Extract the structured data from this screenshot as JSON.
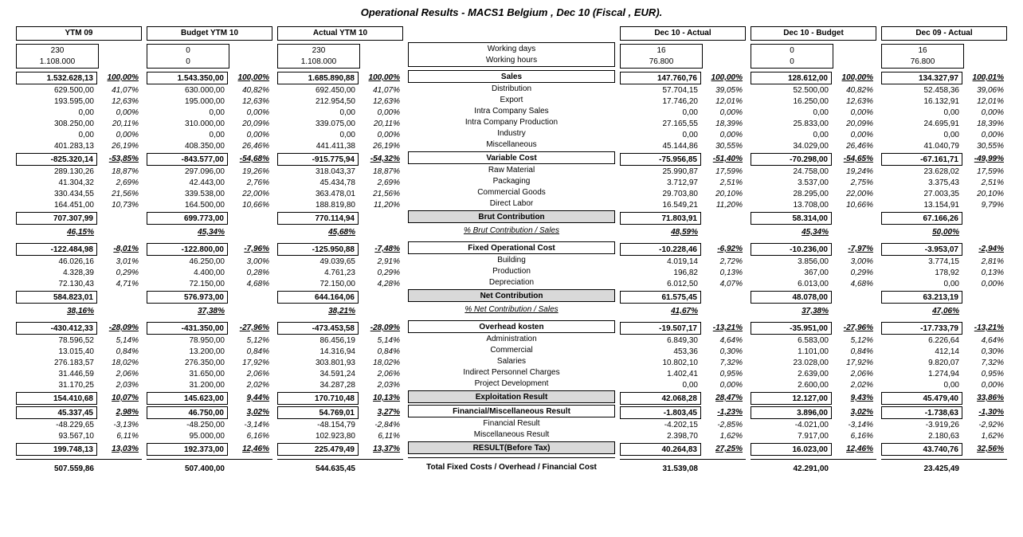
{
  "title": "Operational Results - MACS1  Belgium , Dec 10 (Fiscal , EUR).",
  "column_headers": [
    "YTM 09",
    "Budget YTM 10",
    "Actual YTM 10",
    "",
    "Dec 10 - Actual",
    "Dec 10 - Budget",
    "Dec 09 - Actual"
  ],
  "working_days_label": "Working days",
  "working_hours_label": "Working hours",
  "wd": [
    "230",
    "0",
    "230",
    "",
    "16",
    "0",
    "16"
  ],
  "wh": [
    "1.108.000",
    "0",
    "1.108.000",
    "",
    "76.800",
    "0",
    "76.800"
  ],
  "rows": [
    {
      "type": "main",
      "label": "Sales",
      "grey": false,
      "v": [
        "1.532.628,13",
        "1.543.350,00",
        "1.685.890,88",
        "",
        "147.760,76",
        "128.612,00",
        "134.327,97"
      ],
      "p": [
        "100,00%",
        "100,00%",
        "100,00%",
        "",
        "100,00%",
        "100,00%",
        "100,01%"
      ]
    },
    {
      "type": "sub",
      "label": "Distribution",
      "v": [
        "629.500,00",
        "630.000,00",
        "692.450,00",
        "",
        "57.704,15",
        "52.500,00",
        "52.458,36"
      ],
      "p": [
        "41,07%",
        "40,82%",
        "41,07%",
        "",
        "39,05%",
        "40,82%",
        "39,06%"
      ]
    },
    {
      "type": "sub",
      "label": "Export",
      "v": [
        "193.595,00",
        "195.000,00",
        "212.954,50",
        "",
        "17.746,20",
        "16.250,00",
        "16.132,91"
      ],
      "p": [
        "12,63%",
        "12,63%",
        "12,63%",
        "",
        "12,01%",
        "12,63%",
        "12,01%"
      ]
    },
    {
      "type": "sub",
      "label": "Intra Company Sales",
      "v": [
        "0,00",
        "0,00",
        "0,00",
        "",
        "0,00",
        "0,00",
        "0,00"
      ],
      "p": [
        "0,00%",
        "0,00%",
        "0,00%",
        "",
        "0,00%",
        "0,00%",
        "0,00%"
      ]
    },
    {
      "type": "sub",
      "label": "Intra Company Production",
      "v": [
        "308.250,00",
        "310.000,00",
        "339.075,00",
        "",
        "27.165,55",
        "25.833,00",
        "24.695,91"
      ],
      "p": [
        "20,11%",
        "20,09%",
        "20,11%",
        "",
        "18,39%",
        "20,09%",
        "18,39%"
      ]
    },
    {
      "type": "sub",
      "label": "Industry",
      "v": [
        "0,00",
        "0,00",
        "0,00",
        "",
        "0,00",
        "0,00",
        "0,00"
      ],
      "p": [
        "0,00%",
        "0,00%",
        "0,00%",
        "",
        "0,00%",
        "0,00%",
        "0,00%"
      ]
    },
    {
      "type": "sub",
      "label": "Miscellaneous",
      "v": [
        "401.283,13",
        "408.350,00",
        "441.411,38",
        "",
        "45.144,86",
        "34.029,00",
        "41.040,79"
      ],
      "p": [
        "26,19%",
        "26,46%",
        "26,19%",
        "",
        "30,55%",
        "26,46%",
        "30,55%"
      ]
    },
    {
      "type": "main",
      "label": "Variable Cost",
      "grey": false,
      "v": [
        "-825.320,14",
        "-843.577,00",
        "-915.775,94",
        "",
        "-75.956,85",
        "-70.298,00",
        "-67.161,71"
      ],
      "p": [
        "-53,85%",
        "-54,68%",
        "-54,32%",
        "",
        "-51,40%",
        "-54,65%",
        "-49,99%"
      ]
    },
    {
      "type": "sub",
      "label": "Raw Material",
      "v": [
        "289.130,26",
        "297.096,00",
        "318.043,37",
        "",
        "25.990,87",
        "24.758,00",
        "23.628,02"
      ],
      "p": [
        "18,87%",
        "19,26%",
        "18,87%",
        "",
        "17,59%",
        "19,24%",
        "17,59%"
      ]
    },
    {
      "type": "sub",
      "label": "Packaging",
      "v": [
        "41.304,32",
        "42.443,00",
        "45.434,78",
        "",
        "3.712,97",
        "3.537,00",
        "3.375,43"
      ],
      "p": [
        "2,69%",
        "2,76%",
        "2,69%",
        "",
        "2,51%",
        "2,75%",
        "2,51%"
      ]
    },
    {
      "type": "sub",
      "label": "Commercial Goods",
      "v": [
        "330.434,55",
        "339.538,00",
        "363.478,01",
        "",
        "29.703,80",
        "28.295,00",
        "27.003,35"
      ],
      "p": [
        "21,56%",
        "22,00%",
        "21,56%",
        "",
        "20,10%",
        "22,00%",
        "20,10%"
      ]
    },
    {
      "type": "sub",
      "label": "Direct Labor",
      "v": [
        "164.451,00",
        "164.500,00",
        "188.819,80",
        "",
        "16.549,21",
        "13.708,00",
        "13.154,91"
      ],
      "p": [
        "10,73%",
        "10,66%",
        "11,20%",
        "",
        "11,20%",
        "10,66%",
        "9,79%"
      ]
    },
    {
      "type": "main",
      "label": "Brut Contribution",
      "grey": true,
      "v": [
        "707.307,99",
        "699.773,00",
        "770.114,94",
        "",
        "71.803,91",
        "58.314,00",
        "67.166,26"
      ],
      "p": [
        "",
        "",
        "",
        "",
        "",
        "",
        ""
      ]
    },
    {
      "type": "pctline",
      "label": "% Brut Contribution / Sales",
      "p": [
        "46,15%",
        "45,34%",
        "45,68%",
        "",
        "48,59%",
        "45,34%",
        "50,00%"
      ]
    },
    {
      "type": "main",
      "label": "Fixed Operational Cost",
      "grey": false,
      "v": [
        "-122.484,98",
        "-122.800,00",
        "-125.950,88",
        "",
        "-10.228,46",
        "-10.236,00",
        "-3.953,07"
      ],
      "p": [
        "-8,01%",
        "-7,96%",
        "-7,48%",
        "",
        "-6,92%",
        "-7,97%",
        "-2,94%"
      ]
    },
    {
      "type": "sub",
      "label": "Building",
      "v": [
        "46.026,16",
        "46.250,00",
        "49.039,65",
        "",
        "4.019,14",
        "3.856,00",
        "3.774,15"
      ],
      "p": [
        "3,01%",
        "3,00%",
        "2,91%",
        "",
        "2,72%",
        "3,00%",
        "2,81%"
      ]
    },
    {
      "type": "sub",
      "label": "Production",
      "v": [
        "4.328,39",
        "4.400,00",
        "4.761,23",
        "",
        "196,82",
        "367,00",
        "178,92"
      ],
      "p": [
        "0,29%",
        "0,28%",
        "0,29%",
        "",
        "0,13%",
        "0,29%",
        "0,13%"
      ]
    },
    {
      "type": "sub",
      "label": "Depreciation",
      "v": [
        "72.130,43",
        "72.150,00",
        "72.150,00",
        "",
        "6.012,50",
        "6.013,00",
        "0,00"
      ],
      "p": [
        "4,71%",
        "4,68%",
        "4,28%",
        "",
        "4,07%",
        "4,68%",
        "0,00%"
      ]
    },
    {
      "type": "main",
      "label": "Net Contribution",
      "grey": true,
      "v": [
        "584.823,01",
        "576.973,00",
        "644.164,06",
        "",
        "61.575,45",
        "48.078,00",
        "63.213,19"
      ],
      "p": [
        "",
        "",
        "",
        "",
        "",
        "",
        ""
      ]
    },
    {
      "type": "pctline",
      "label": "% Net Contribution / Sales",
      "p": [
        "38,16%",
        "37,38%",
        "38,21%",
        "",
        "41,67%",
        "37,38%",
        "47,06%"
      ]
    },
    {
      "type": "main",
      "label": "Overhead kosten",
      "grey": false,
      "v": [
        "-430.412,33",
        "-431.350,00",
        "-473.453,58",
        "",
        "-19.507,17",
        "-35.951,00",
        "-17.733,79"
      ],
      "p": [
        "-28,09%",
        "-27,96%",
        "-28,09%",
        "",
        "-13,21%",
        "-27,96%",
        "-13,21%"
      ]
    },
    {
      "type": "sub",
      "label": "Administration",
      "v": [
        "78.596,52",
        "78.950,00",
        "86.456,19",
        "",
        "6.849,30",
        "6.583,00",
        "6.226,64"
      ],
      "p": [
        "5,14%",
        "5,12%",
        "5,14%",
        "",
        "4,64%",
        "5,12%",
        "4,64%"
      ]
    },
    {
      "type": "sub",
      "label": "Commercial",
      "v": [
        "13.015,40",
        "13.200,00",
        "14.316,94",
        "",
        "453,36",
        "1.101,00",
        "412,14"
      ],
      "p": [
        "0,84%",
        "0,84%",
        "0,84%",
        "",
        "0,30%",
        "0,84%",
        "0,30%"
      ]
    },
    {
      "type": "sub",
      "label": "Salaries",
      "v": [
        "276.183,57",
        "276.350,00",
        "303.801,93",
        "",
        "10.802,10",
        "23.028,00",
        "9.820,07"
      ],
      "p": [
        "18,02%",
        "17,92%",
        "18,02%",
        "",
        "7,32%",
        "17,92%",
        "7,32%"
      ]
    },
    {
      "type": "sub",
      "label": "Indirect Personnel Charges",
      "v": [
        "31.446,59",
        "31.650,00",
        "34.591,24",
        "",
        "1.402,41",
        "2.639,00",
        "1.274,94"
      ],
      "p": [
        "2,06%",
        "2,06%",
        "2,06%",
        "",
        "0,95%",
        "2,06%",
        "0,95%"
      ]
    },
    {
      "type": "sub",
      "label": "Project Development",
      "v": [
        "31.170,25",
        "31.200,00",
        "34.287,28",
        "",
        "0,00",
        "2.600,00",
        "0,00"
      ],
      "p": [
        "2,03%",
        "2,02%",
        "2,03%",
        "",
        "0,00%",
        "2,02%",
        "0,00%"
      ]
    },
    {
      "type": "main",
      "label": "Exploitation Result",
      "grey": true,
      "v": [
        "154.410,68",
        "145.623,00",
        "170.710,48",
        "",
        "42.068,28",
        "12.127,00",
        "45.479,40"
      ],
      "p": [
        "10,07%",
        "9,44%",
        "10,13%",
        "",
        "28,47%",
        "9,43%",
        "33,86%"
      ]
    },
    {
      "type": "main",
      "label": "Financial/Miscellaneous Result",
      "grey": false,
      "v": [
        "45.337,45",
        "46.750,00",
        "54.769,01",
        "",
        "-1.803,45",
        "3.896,00",
        "-1.738,63"
      ],
      "p": [
        "2,98%",
        "3,02%",
        "3,27%",
        "",
        "-1,23%",
        "3,02%",
        "-1,30%"
      ]
    },
    {
      "type": "sub",
      "label": "Financial Result",
      "v": [
        "-48.229,65",
        "-48.250,00",
        "-48.154,79",
        "",
        "-4.202,15",
        "-4.021,00",
        "-3.919,26"
      ],
      "p": [
        "-3,13%",
        "-3,14%",
        "-2,84%",
        "",
        "-2,85%",
        "-3,14%",
        "-2,92%"
      ]
    },
    {
      "type": "sub",
      "label": "Miscellaneous Result",
      "v": [
        "93.567,10",
        "95.000,00",
        "102.923,80",
        "",
        "2.398,70",
        "7.917,00",
        "2.180,63"
      ],
      "p": [
        "6,11%",
        "6,16%",
        "6,11%",
        "",
        "1,62%",
        "6,16%",
        "1,62%"
      ]
    },
    {
      "type": "main",
      "label": "RESULT(Before Tax)",
      "grey": true,
      "v": [
        "199.748,13",
        "192.373,00",
        "225.479,49",
        "",
        "40.264,83",
        "16.023,00",
        "43.740,76"
      ],
      "p": [
        "13,03%",
        "12,46%",
        "13,37%",
        "",
        "27,25%",
        "12,46%",
        "32,56%"
      ]
    }
  ],
  "total_label": "Total Fixed Costs / Overhead / Financial Cost",
  "total": [
    "507.559,86",
    "507.400,00",
    "544.635,45",
    "",
    "31.539,08",
    "42.291,00",
    "23.425,49"
  ]
}
